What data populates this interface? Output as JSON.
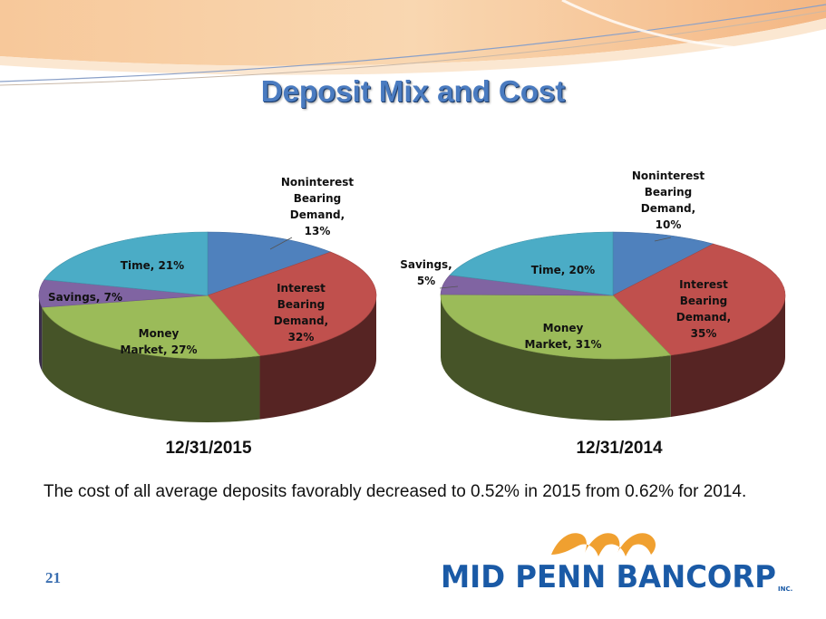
{
  "title": "Deposit Mix and Cost",
  "body_text": "The cost of all average deposits favorably decreased to 0.52% in 2015 from 0.62% for 2014.",
  "page_number": "21",
  "logo": {
    "text": "MID PENN BANCORP",
    "suffix": "INC."
  },
  "colors": {
    "title": "#4a7bc0",
    "noninterest": "#4f81bd",
    "interest": "#c0504d",
    "money_market": "#9bbb59",
    "savings": "#8064a2",
    "time": "#4bacc6",
    "logo_blue": "#1a5aa6",
    "logo_orange": "#f0a030"
  },
  "chart_data": [
    {
      "type": "pie",
      "title": "12/31/2015",
      "slices": [
        {
          "label_lines": [
            "Noninterest",
            "Bearing",
            "Demand,",
            "13%"
          ],
          "name": "Noninterest Bearing Demand",
          "value": 13,
          "color": "#4f81bd"
        },
        {
          "label_lines": [
            "Interest",
            "Bearing",
            "Demand,",
            "32%"
          ],
          "name": "Interest Bearing Demand",
          "value": 32,
          "color": "#c0504d"
        },
        {
          "label_lines": [
            "Money",
            "Market, 27%"
          ],
          "name": "Money Market",
          "value": 27,
          "color": "#9bbb59"
        },
        {
          "label_lines": [
            "Savings, 7%"
          ],
          "name": "Savings",
          "value": 7,
          "color": "#8064a2"
        },
        {
          "label_lines": [
            "Time, 21%"
          ],
          "name": "Time",
          "value": 21,
          "color": "#4bacc6"
        }
      ]
    },
    {
      "type": "pie",
      "title": "12/31/2014",
      "slices": [
        {
          "label_lines": [
            "Noninterest",
            "Bearing",
            "Demand,",
            "10%"
          ],
          "name": "Noninterest Bearing Demand",
          "value": 10,
          "color": "#4f81bd"
        },
        {
          "label_lines": [
            "Interest",
            "Bearing",
            "Demand,",
            "35%"
          ],
          "name": "Interest Bearing Demand",
          "value": 35,
          "color": "#c0504d"
        },
        {
          "label_lines": [
            "Money",
            "Market, 31%"
          ],
          "name": "Money Market",
          "value": 31,
          "color": "#9bbb59"
        },
        {
          "label_lines": [
            "Savings,",
            "5%"
          ],
          "name": "Savings",
          "value": 5,
          "color": "#8064a2"
        },
        {
          "label_lines": [
            "Time, 20%"
          ],
          "name": "Time",
          "value": 20,
          "color": "#4bacc6"
        }
      ]
    }
  ]
}
